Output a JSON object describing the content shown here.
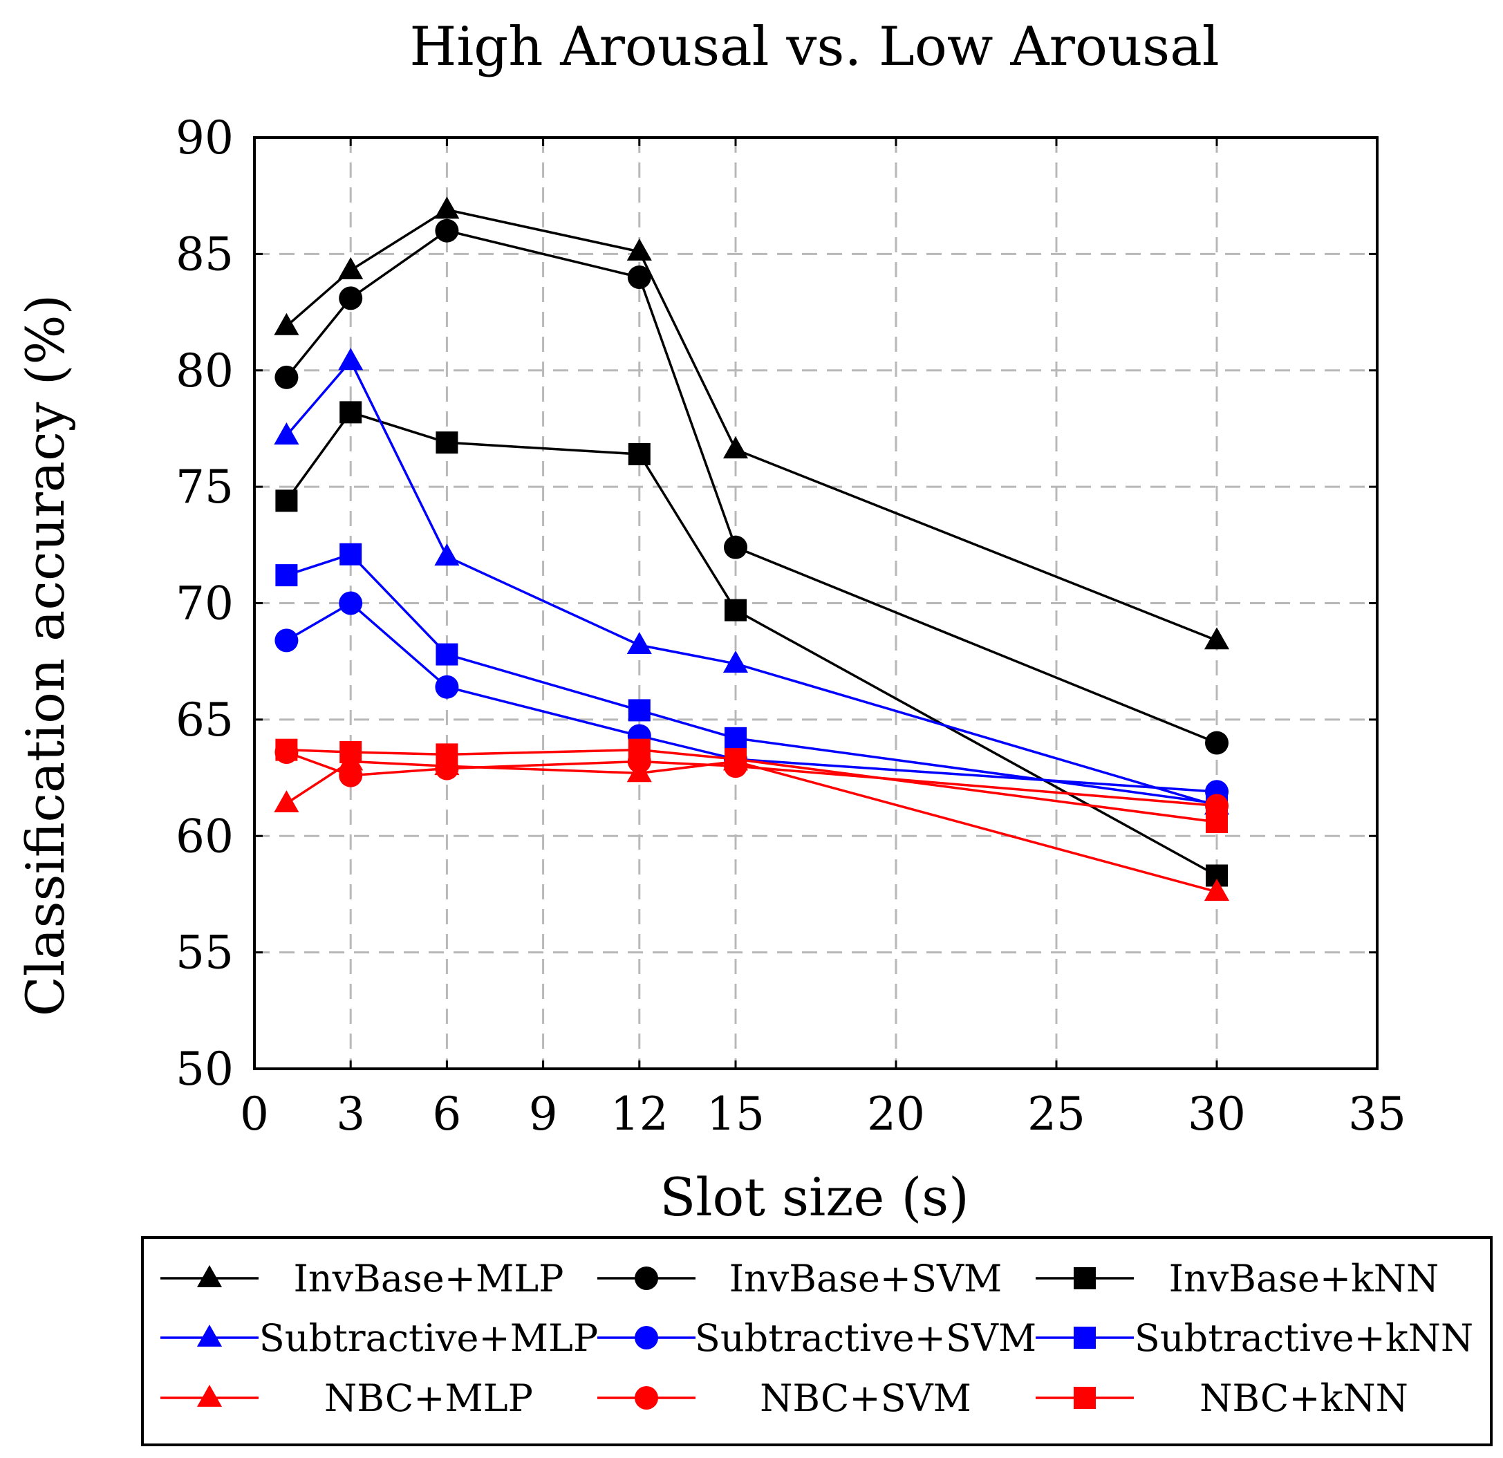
{
  "chart_data": {
    "type": "line",
    "title": "High Arousal vs. Low Arousal",
    "xlabel": "Slot size (s)",
    "ylabel": "Classification accuracy (%)",
    "xlim": [
      0,
      35
    ],
    "ylim": [
      50,
      90
    ],
    "xticks": [
      0,
      3,
      6,
      9,
      12,
      15,
      20,
      25,
      30,
      35
    ],
    "xtick_labels": [
      "0",
      "3",
      "6",
      "9",
      "12",
      "15",
      "20",
      "25",
      "30",
      "35"
    ],
    "yticks": [
      50,
      55,
      60,
      65,
      70,
      75,
      80,
      85,
      90
    ],
    "ytick_labels": [
      "50",
      "55",
      "60",
      "65",
      "70",
      "75",
      "80",
      "85",
      "90"
    ],
    "grid": true,
    "legend_position": "bottom",
    "x": [
      1,
      3,
      6,
      12,
      15,
      30
    ],
    "series": [
      {
        "name": "InvBase+MLP",
        "color": "#000000",
        "marker": "triangle",
        "values": [
          81.9,
          84.3,
          86.9,
          85.1,
          76.6,
          68.4
        ]
      },
      {
        "name": "InvBase+SVM",
        "color": "#000000",
        "marker": "circle",
        "values": [
          79.7,
          83.1,
          86.0,
          84.0,
          72.4,
          64.0
        ]
      },
      {
        "name": "InvBase+kNN",
        "color": "#000000",
        "marker": "square",
        "values": [
          74.4,
          78.2,
          76.9,
          76.4,
          69.7,
          58.3
        ]
      },
      {
        "name": "Subtractive+MLP",
        "color": "#0000ff",
        "marker": "triangle",
        "values": [
          77.2,
          80.4,
          72.0,
          68.2,
          67.4,
          61.3
        ]
      },
      {
        "name": "Subtractive+SVM",
        "color": "#0000ff",
        "marker": "circle",
        "values": [
          68.4,
          70.0,
          66.4,
          64.3,
          63.3,
          61.9
        ]
      },
      {
        "name": "Subtractive+kNN",
        "color": "#0000ff",
        "marker": "square",
        "values": [
          71.2,
          72.1,
          67.8,
          65.4,
          64.2,
          61.4
        ]
      },
      {
        "name": "NBC+MLP",
        "color": "#ff0000",
        "marker": "triangle",
        "values": [
          61.4,
          63.2,
          63.0,
          62.7,
          63.2,
          57.6
        ]
      },
      {
        "name": "NBC+SVM",
        "color": "#ff0000",
        "marker": "circle",
        "values": [
          63.6,
          62.6,
          62.9,
          63.2,
          63.0,
          61.3
        ]
      },
      {
        "name": "NBC+kNN",
        "color": "#ff0000",
        "marker": "square",
        "values": [
          63.7,
          63.6,
          63.5,
          63.7,
          63.3,
          60.6
        ]
      }
    ]
  }
}
